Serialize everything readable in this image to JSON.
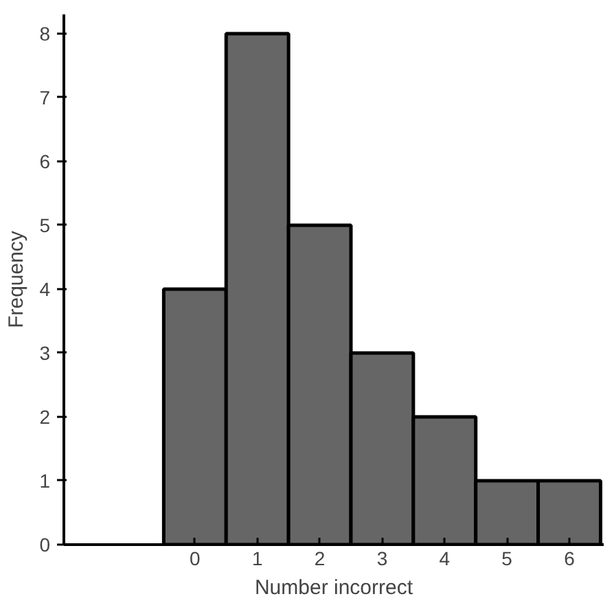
{
  "chart_data": {
    "type": "bar",
    "xlabel": "Number incorrect",
    "ylabel": "Frequency",
    "categories": [
      "0",
      "1",
      "2",
      "3",
      "4",
      "5",
      "6"
    ],
    "values": [
      4,
      8,
      5,
      3,
      2,
      1,
      1
    ],
    "color": "#666666",
    "ylim": [
      0,
      8.3
    ],
    "yticks": [
      0,
      1,
      2,
      3,
      4,
      5,
      6,
      7,
      8
    ],
    "grid": false
  }
}
